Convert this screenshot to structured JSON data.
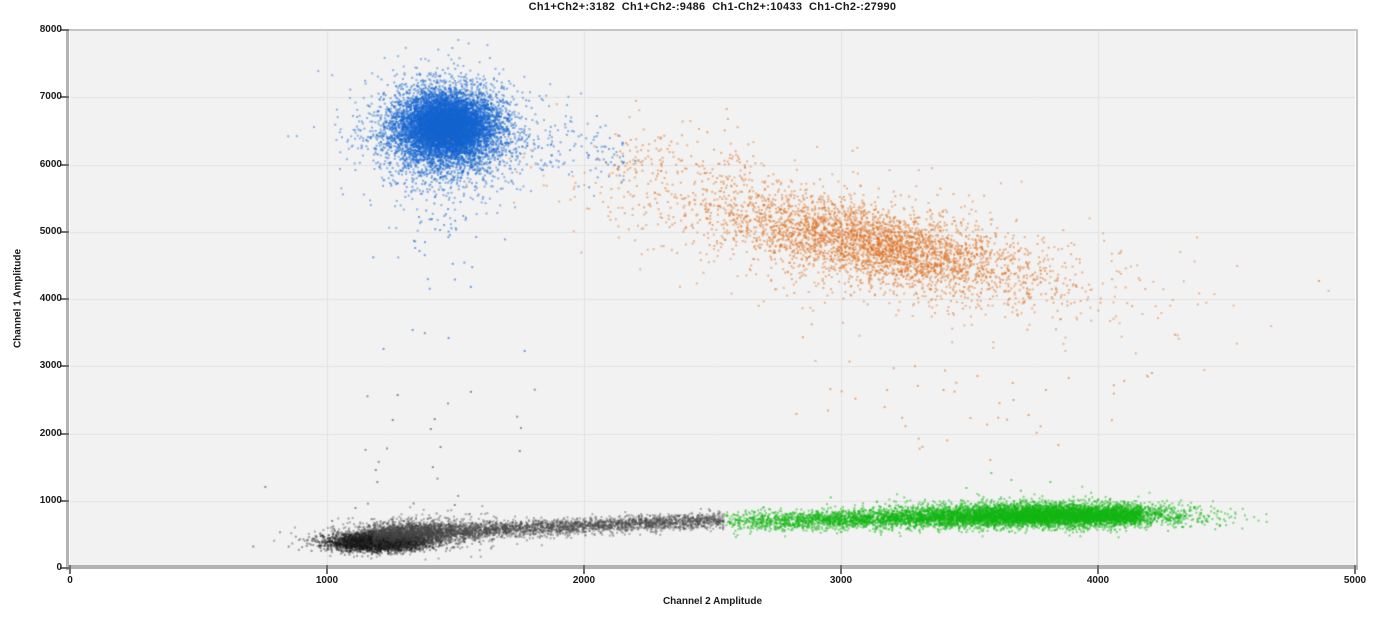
{
  "header": {
    "title": "Ch1+Ch2+:3182  Ch1+Ch2-:9486  Ch1-Ch2+:10433  Ch1-Ch2-:27990"
  },
  "chart_data": {
    "type": "scatter",
    "title": "Ch1+Ch2+:3182 Ch1+Ch2-:9486 Ch1-Ch2+:10433 Ch1-Ch2-:27990",
    "xlabel": "Channel 2 Amplitude",
    "ylabel": "Channel 1 Amplitude",
    "xlim": [
      0,
      5000
    ],
    "ylim": [
      0,
      8000
    ],
    "x_ticks": [
      0,
      1000,
      2000,
      3000,
      4000,
      5000
    ],
    "y_ticks": [
      0,
      1000,
      2000,
      3000,
      4000,
      5000,
      6000,
      7000,
      8000
    ],
    "grid": true,
    "legend_position": "none",
    "seed": 42,
    "style": {
      "plot_bg": "#f2f2f2",
      "grid_color": "#e3e3e3",
      "axis_color": "#b3b3b3",
      "tick_color": "#6e6e6e",
      "label_color": "#1a1a1a"
    },
    "populations": [
      {
        "id": "ch1pos_ch2neg",
        "legend": "Ch1+Ch2-",
        "count": 9486,
        "color": "#1565d2",
        "center": [
          1470,
          6550
        ],
        "components": [
          {
            "type": "gauss",
            "n": 6000,
            "cx": 1462,
            "cy": 6540,
            "sx": 110,
            "sy": 300,
            "angle": 0,
            "alpha": 0.5,
            "size": 2
          },
          {
            "type": "gauss",
            "n": 3200,
            "cx": 1470,
            "cy": 6590,
            "sx": 70,
            "sy": 190,
            "angle": 0,
            "alpha": 0.5,
            "size": 2
          },
          {
            "type": "gauss",
            "n": 900,
            "cx": 1455,
            "cy": 6420,
            "sx": 200,
            "sy": 520,
            "angle": 0,
            "alpha": 0.45,
            "size": 2
          },
          {
            "type": "band",
            "n": 120,
            "x0": 1640,
            "x1": 2160,
            "y0": 6280,
            "y1": 6150,
            "sy": 210,
            "bias": 1,
            "alpha": 0.5,
            "size": 2
          },
          {
            "type": "gauss",
            "n": 40,
            "cx": 1450,
            "cy": 5000,
            "sx": 75,
            "sy": 480,
            "angle": 0,
            "alpha": 0.55,
            "size": 2
          },
          {
            "type": "points",
            "alpha": 0.6,
            "size": 2,
            "pts": [
              [
                1333,
                3539
              ],
              [
                1473,
                3420
              ],
              [
                1220,
                3257
              ],
              [
                1769,
                3227
              ],
              [
                1560,
                4180
              ],
              [
                1180,
                4620
              ],
              [
                2020,
                5660
              ],
              [
                2200,
                6050
              ]
            ]
          }
        ]
      },
      {
        "id": "ch1pos_ch2pos",
        "legend": "Ch1+Ch2+",
        "count": 3182,
        "color": "#e0701e",
        "center": [
          3130,
          4820
        ],
        "components": [
          {
            "type": "gauss",
            "n": 3000,
            "cx": 3130,
            "cy": 4820,
            "s1": 430,
            "s2": 195,
            "angle": -52,
            "alpha": 0.5,
            "size": 2
          },
          {
            "type": "gauss",
            "n": 900,
            "cx": 3150,
            "cy": 4750,
            "s1": 760,
            "s2": 360,
            "angle": -52,
            "alpha": 0.45,
            "size": 2
          },
          {
            "type": "band",
            "n": 190,
            "x0": 2110,
            "x1": 2720,
            "y0": 6100,
            "y1": 5600,
            "sy": 320,
            "bias": 1,
            "alpha": 0.5,
            "size": 2
          },
          {
            "type": "band",
            "n": 34,
            "x0": 2780,
            "x1": 4150,
            "y0": 2750,
            "y1": 2450,
            "sy": 420,
            "bias": 0.9,
            "alpha": 0.55,
            "size": 2
          },
          {
            "type": "points",
            "alpha": 0.6,
            "size": 2,
            "pts": [
              [
                3581,
                1606
              ],
              [
                3846,
                1829
              ],
              [
                3730,
                2275
              ],
              [
                3671,
                2498
              ],
              [
                3797,
                2647
              ],
              [
                3399,
                2647
              ],
              [
                3531,
                2855
              ],
              [
                3668,
                2751
              ],
              [
                4860,
                4268
              ],
              [
                4210,
                2900
              ],
              [
                4300,
                3470
              ],
              [
                2480,
                6480
              ],
              [
                2340,
                6340
              ]
            ]
          }
        ]
      },
      {
        "id": "ch1neg_ch2neg",
        "legend": "Ch1-Ch2-",
        "count": 27990,
        "color": "#4a4a4a",
        "center": [
          1200,
          400
        ],
        "components": [
          {
            "type": "gauss",
            "n": 3200,
            "cx": 1195,
            "cy": 390,
            "sx": 95,
            "sy": 70,
            "angle": 5,
            "color": "#181818",
            "alpha": 0.4,
            "size": 2
          },
          {
            "type": "gauss",
            "n": 1600,
            "cx": 1340,
            "cy": 510,
            "sx": 150,
            "sy": 105,
            "angle": 12,
            "color": "#383838",
            "alpha": 0.38,
            "size": 2
          },
          {
            "type": "band",
            "n": 3000,
            "x0": 1180,
            "x1": 2545,
            "y0": 500,
            "y1": 715,
            "sy": 60,
            "bias": 1.05,
            "alpha": 0.42,
            "size": 2
          },
          {
            "type": "band",
            "n": 16,
            "x0": 1130,
            "x1": 1850,
            "y0": 1650,
            "y1": 1400,
            "sy": 600,
            "bias": 1,
            "alpha": 0.55,
            "size": 2
          },
          {
            "type": "points",
            "alpha": 0.6,
            "size": 2,
            "pts": [
              [
                760,
                1205
              ],
              [
                713,
                320
              ],
              [
                851,
                318
              ],
              [
                921,
                330
              ],
              [
                940,
                255
              ],
              [
                1020,
                700
              ],
              [
                1111,
                892
              ],
              [
                1497,
                937
              ],
              [
                1275,
                2572
              ],
              [
                1256,
                2200
              ],
              [
                1419,
                2214
              ],
              [
                1404,
                2066
              ],
              [
                1442,
                1799
              ],
              [
                1750,
                1739
              ],
              [
                1190,
                1457
              ],
              [
                1196,
                1278
              ],
              [
                1412,
                1500
              ],
              [
                1337,
                960
              ],
              [
                1560,
                2620
              ]
            ]
          }
        ]
      },
      {
        "id": "ch1neg_ch2pos",
        "legend": "Ch1-Ch2+",
        "count": 10433,
        "color": "#14b714",
        "center": [
          3600,
          780
        ],
        "components": [
          {
            "type": "band",
            "n": 5200,
            "x0": 2548,
            "x1": 4170,
            "y0": 700,
            "y1": 780,
            "sy": 72,
            "bias": 0.72,
            "alpha": 0.5,
            "size": 2
          },
          {
            "type": "gauss",
            "n": 3600,
            "cx": 3810,
            "cy": 800,
            "sx": 270,
            "sy": 95,
            "angle": -2,
            "alpha": 0.5,
            "size": 2
          },
          {
            "type": "band",
            "n": 70,
            "x0": 4170,
            "x1": 4345,
            "y0": 770,
            "y1": 740,
            "sy": 65,
            "bias": 1,
            "alpha": 0.5,
            "size": 2
          },
          {
            "type": "points",
            "alpha": 0.6,
            "size": 2,
            "pts": [
              [
                3585,
                1412
              ],
              [
                3663,
                1309
              ],
              [
                3488,
                1190
              ],
              [
                3815,
                1279
              ],
              [
                4287,
                892
              ],
              [
                4221,
                758
              ],
              [
                4314,
                743
              ],
              [
                3905,
                1060
              ],
              [
                3700,
                1150
              ],
              [
                4420,
                700
              ],
              [
                2960,
                1050
              ]
            ]
          }
        ]
      }
    ]
  }
}
